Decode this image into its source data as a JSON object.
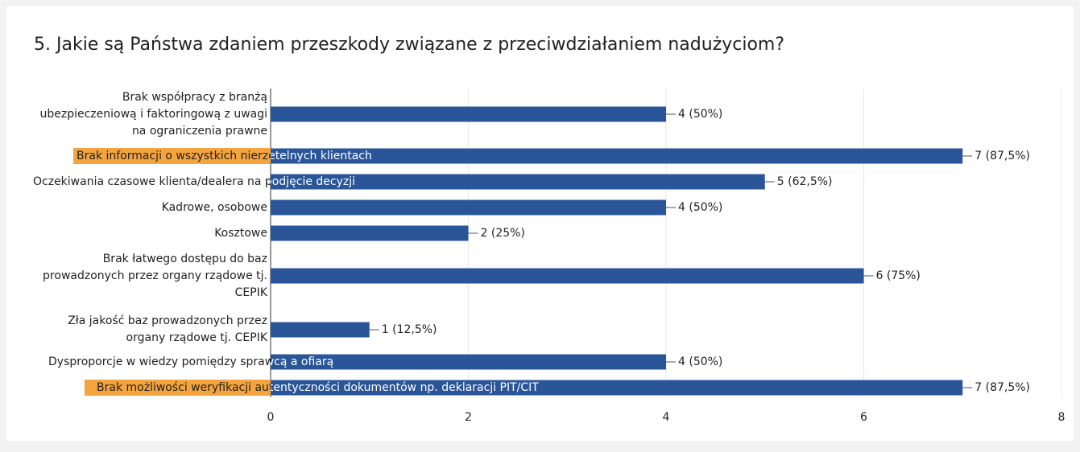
{
  "chart_data": {
    "type": "bar",
    "orientation": "horizontal",
    "title": "5. Jakie są Państwa zdaniem przeszkody związane z przeciwdziałaniem nadużyciom?",
    "categories": [
      "Brak współpracy z branżą ubezpieczeniową i faktoringową z uwagi na ograniczenia prawne",
      "Brak informacji o wszystkich nierzetelnych klientach",
      "Oczekiwania czasowe klienta/dealera na podjęcie decyzji",
      "Kadrowe, osobowe",
      "Kosztowe",
      "Brak łatwego dostępu do baz prowadzonych przez organy rządowe tj. CEPIK",
      "Zła jakość baz prowadzonych przez organy rządowe tj. CEPIK",
      "Dysproporcje w wiedzy pomiędzy sprawcą a ofiarą",
      "Brak możliwości weryfikacji autentyczności dokumentów np. deklaracji PIT/CIT"
    ],
    "values": [
      4,
      7,
      5,
      4,
      2,
      6,
      1,
      4,
      7
    ],
    "value_labels": [
      "4 (50%)",
      "7 (87,5%)",
      "5 (62,5%)",
      "4 (50%)",
      "2 (25%)",
      "6 (75%)",
      "1 (12,5%)",
      "4 (50%)",
      "7 (87,5%)"
    ],
    "color": "#2a5699",
    "highlighted": [
      false,
      true,
      false,
      false,
      false,
      false,
      false,
      false,
      true
    ],
    "highlight_color": "#f4a43c",
    "xlim": [
      0,
      8
    ],
    "xticks": [
      0,
      2,
      4,
      6,
      8
    ],
    "grid": true
  }
}
